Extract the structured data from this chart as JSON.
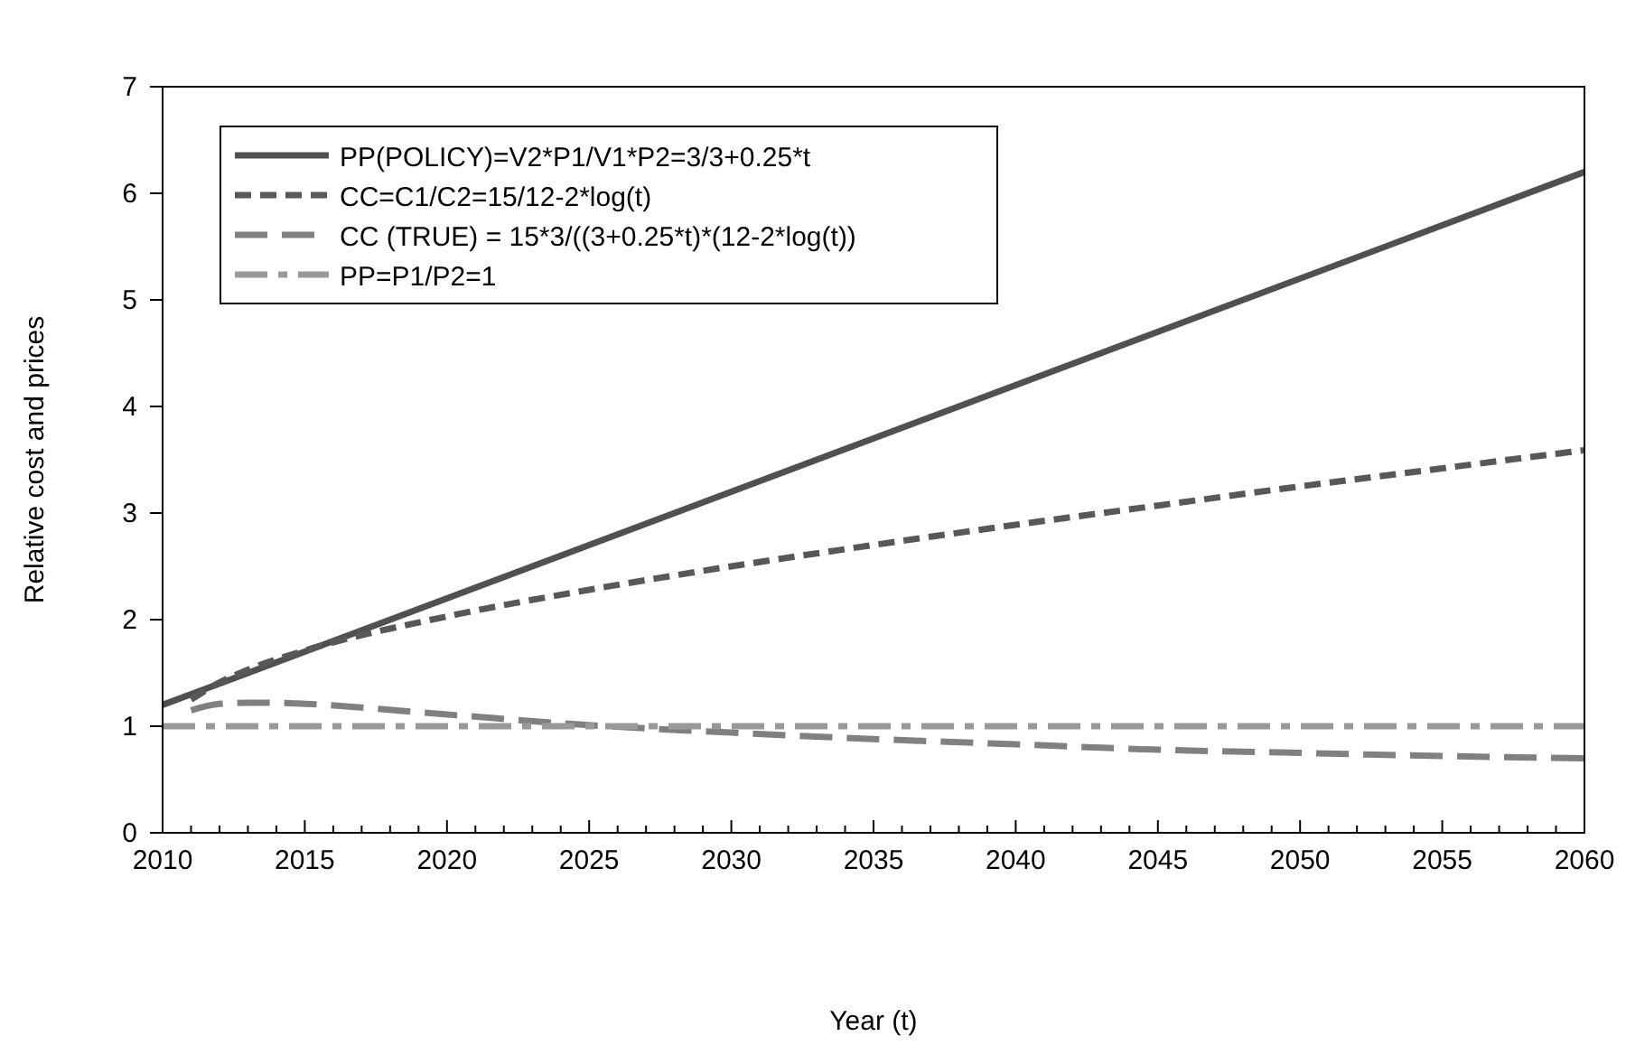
{
  "chart_data": {
    "type": "line",
    "xlabel": "Year (t)",
    "ylabel": "Relative cost and prices",
    "xlim": [
      2010,
      2060
    ],
    "ylim": [
      0,
      7
    ],
    "xticks": [
      2010,
      {
        "value": 2011,
        "label": null
      },
      {
        "value": 2012,
        "label": null
      },
      {
        "value": 2013,
        "label": null
      },
      {
        "value": 2014,
        "label": null
      },
      2015,
      {
        "value": 2016,
        "label": null
      },
      {
        "value": 2017,
        "label": null
      },
      {
        "value": 2018,
        "label": null
      },
      {
        "value": 2019,
        "label": null
      },
      2020,
      {
        "value": 2021,
        "label": null
      },
      {
        "value": 2022,
        "label": null
      },
      {
        "value": 2023,
        "label": null
      },
      {
        "value": 2024,
        "label": null
      },
      2025,
      {
        "value": 2026,
        "label": null
      },
      {
        "value": 2027,
        "label": null
      },
      {
        "value": 2028,
        "label": null
      },
      {
        "value": 2029,
        "label": null
      },
      2030,
      {
        "value": 2031,
        "label": null
      },
      {
        "value": 2032,
        "label": null
      },
      {
        "value": 2033,
        "label": null
      },
      {
        "value": 2034,
        "label": null
      },
      2035,
      {
        "value": 2036,
        "label": null
      },
      {
        "value": 2037,
        "label": null
      },
      {
        "value": 2038,
        "label": null
      },
      {
        "value": 2039,
        "label": null
      },
      2040,
      {
        "value": 2041,
        "label": null
      },
      {
        "value": 2042,
        "label": null
      },
      {
        "value": 2043,
        "label": null
      },
      {
        "value": 2044,
        "label": null
      },
      2045,
      {
        "value": 2046,
        "label": null
      },
      {
        "value": 2047,
        "label": null
      },
      {
        "value": 2048,
        "label": null
      },
      {
        "value": 2049,
        "label": null
      },
      2050,
      {
        "value": 2051,
        "label": null
      },
      {
        "value": 2052,
        "label": null
      },
      {
        "value": 2053,
        "label": null
      },
      {
        "value": 2054,
        "label": null
      },
      2055,
      {
        "value": 2056,
        "label": null
      },
      {
        "value": 2057,
        "label": null
      },
      {
        "value": 2058,
        "label": null
      },
      {
        "value": 2059,
        "label": null
      },
      2060
    ],
    "yticks": [
      0,
      1,
      2,
      3,
      4,
      5,
      6,
      7
    ],
    "grid": false,
    "legend": "top left",
    "series": [
      {
        "name": "PP(POLICY)=V2*P1/V1*P2=3/3+0.25*t",
        "color": "#505050",
        "line_style": "solid",
        "x": [
          2010,
          2060
        ],
        "values": [
          1.2,
          6.2
        ]
      },
      {
        "name": "CC=C1/C2=15/12-2*log(t)",
        "color": "#585858",
        "line_style": "dashed",
        "x": [
          2011,
          2012,
          2013,
          2015,
          2020,
          2025,
          2030,
          2035,
          2040,
          2045,
          2050,
          2055,
          2060
        ],
        "values": [
          1.25,
          1.41,
          1.53,
          1.71,
          2.03,
          2.28,
          2.5,
          2.7,
          2.89,
          3.07,
          3.25,
          3.42,
          3.59
        ]
      },
      {
        "name": "CC (TRUE) = 15*3/((3+0.25*t)*(12-2*log(t))",
        "color": "#808080",
        "line_style": "longdash",
        "x": [
          2011,
          2012,
          2013,
          2014,
          2015,
          2020,
          2025,
          2030,
          2035,
          2040,
          2045,
          2050,
          2055,
          2060
        ],
        "values": [
          1.15,
          1.21,
          1.22,
          1.22,
          1.21,
          1.11,
          1.01,
          0.94,
          0.88,
          0.83,
          0.78,
          0.75,
          0.72,
          0.7
        ]
      },
      {
        "name": "PP=P1/P2=1",
        "color": "#999999",
        "line_style": "dashdot",
        "x": [
          2010,
          2060
        ],
        "values": [
          1,
          1
        ]
      }
    ]
  }
}
